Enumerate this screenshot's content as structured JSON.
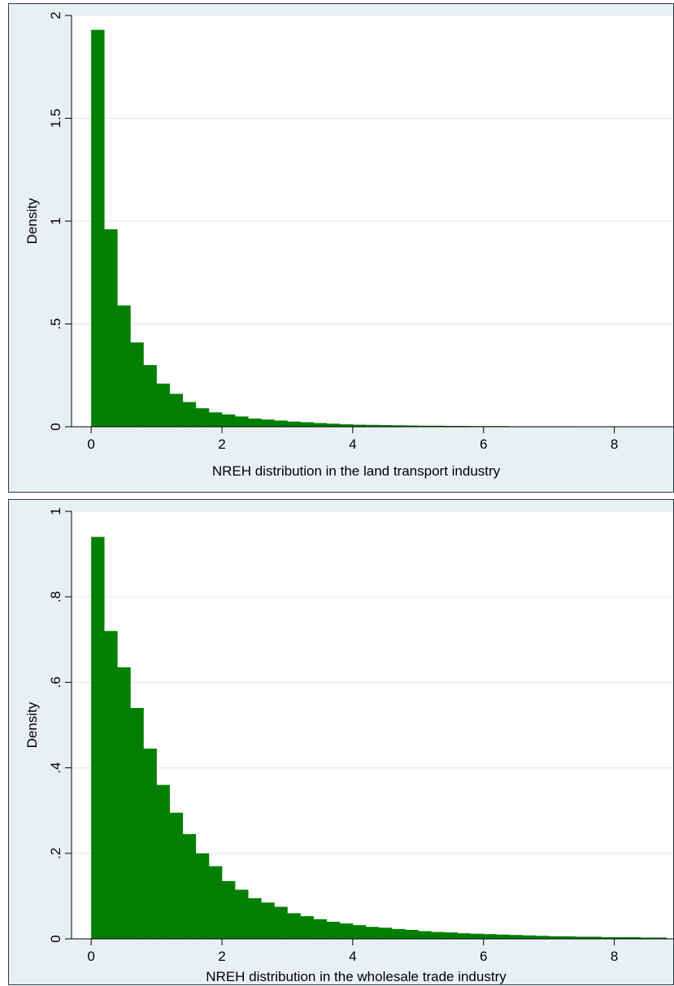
{
  "colors": {
    "bar": "#007f00",
    "plot_bg": "#ffffff",
    "panel_bg": "#e9f0f3",
    "grid": "#e3eaee"
  },
  "chart_data": [
    {
      "type": "bar",
      "subtype": "histogram",
      "xlabel": "NREH distribution in the land transport industry",
      "ylabel": "Density",
      "xlim": [
        -0.3,
        8.9
      ],
      "ylim": [
        0,
        2.0
      ],
      "xticks": [
        0,
        2,
        4,
        6,
        8
      ],
      "xtick_labels": [
        "0",
        "2",
        "4",
        "6",
        "8"
      ],
      "yticks": [
        0,
        0.5,
        1,
        1.5,
        2
      ],
      "ytick_labels": [
        "0",
        ".5",
        "1",
        "1.5",
        "2"
      ],
      "grid": "horizontal",
      "bin_start": 0,
      "bin_width": 0.2,
      "values": [
        1.93,
        0.96,
        0.59,
        0.41,
        0.3,
        0.21,
        0.16,
        0.12,
        0.09,
        0.07,
        0.06,
        0.05,
        0.04,
        0.035,
        0.03,
        0.025,
        0.022,
        0.018,
        0.015,
        0.012,
        0.01,
        0.009,
        0.008,
        0.007,
        0.006,
        0.005,
        0.005,
        0.004,
        0.004,
        0.003,
        0.003,
        0.003,
        0.002,
        0.002,
        0.002,
        0.002,
        0.002,
        0.001,
        0.001,
        0.001,
        0.001,
        0.001,
        0.001,
        0.001
      ]
    },
    {
      "type": "bar",
      "subtype": "histogram",
      "xlabel": "NREH distribution in the wholesale trade industry",
      "ylabel": "Density",
      "xlim": [
        -0.3,
        8.9
      ],
      "ylim": [
        0,
        1.0
      ],
      "xticks": [
        0,
        2,
        4,
        6,
        8
      ],
      "xtick_labels": [
        "0",
        "2",
        "4",
        "6",
        "8"
      ],
      "yticks": [
        0,
        0.2,
        0.4,
        0.6,
        0.8,
        1
      ],
      "ytick_labels": [
        "0",
        ".2",
        ".4",
        ".6",
        ".8",
        "1"
      ],
      "grid": "horizontal",
      "bin_start": 0,
      "bin_width": 0.2,
      "values": [
        0.94,
        0.72,
        0.635,
        0.54,
        0.445,
        0.36,
        0.295,
        0.245,
        0.2,
        0.17,
        0.135,
        0.115,
        0.095,
        0.085,
        0.075,
        0.06,
        0.053,
        0.046,
        0.04,
        0.036,
        0.032,
        0.028,
        0.026,
        0.023,
        0.021,
        0.018,
        0.016,
        0.015,
        0.013,
        0.012,
        0.011,
        0.01,
        0.009,
        0.008,
        0.007,
        0.006,
        0.006,
        0.005,
        0.005,
        0.004,
        0.004,
        0.004,
        0.003,
        0.003
      ]
    }
  ]
}
